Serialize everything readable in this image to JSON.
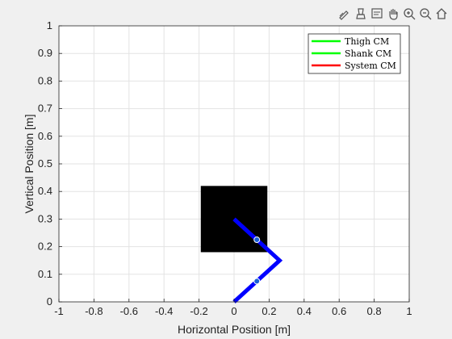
{
  "toolbar": {
    "icons": [
      "edit-plot-icon",
      "brush-icon",
      "datatip-icon",
      "pan-icon",
      "zoom-in-icon",
      "zoom-out-icon",
      "home-icon"
    ]
  },
  "chart_data": {
    "type": "line",
    "xlabel": "Horizontal Position [m]",
    "ylabel": "Vertical Position [m]",
    "xlim": [
      -1,
      1
    ],
    "ylim": [
      0,
      1
    ],
    "xticks": [
      "-1",
      "-0.8",
      "-0.6",
      "-0.4",
      "-0.2",
      "0",
      "0.2",
      "0.4",
      "0.6",
      "0.8",
      "1"
    ],
    "yticks": [
      "0",
      "0.1",
      "0.2",
      "0.3",
      "0.4",
      "0.5",
      "0.6",
      "0.7",
      "0.8",
      "0.9",
      "1"
    ],
    "grid": true,
    "legend_location": "top-right",
    "legend": [
      {
        "label": "Thigh CM",
        "color": "#00ff00"
      },
      {
        "label": "Shank CM",
        "color": "#00ff00"
      },
      {
        "label": "System CM",
        "color": "#ff0000"
      }
    ],
    "hip_block": {
      "x": [
        -0.19,
        0.19
      ],
      "y": [
        0.18,
        0.42
      ],
      "color": "#000000"
    },
    "leg_segments": {
      "color": "#0000ff",
      "points": [
        {
          "x": 0.0,
          "y": 0.3
        },
        {
          "x": 0.26,
          "y": 0.15
        },
        {
          "x": 0.0,
          "y": 0.0
        }
      ]
    },
    "cm_markers": [
      {
        "name": "thigh-cm",
        "x": 0.13,
        "y": 0.225
      },
      {
        "name": "shank-cm",
        "x": 0.13,
        "y": 0.075
      }
    ]
  }
}
